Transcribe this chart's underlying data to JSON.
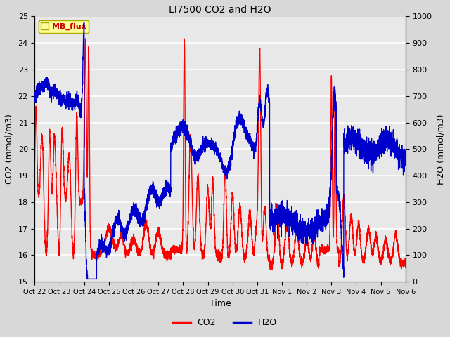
{
  "title": "LI7500 CO2 and H2O",
  "xlabel": "Time",
  "ylabel_left": "CO2 (mmol/m3)",
  "ylabel_right": "H2O (mmol/m3)",
  "ylim_left": [
    15.0,
    25.0
  ],
  "ylim_right": [
    0,
    1000
  ],
  "yticks_left": [
    15.0,
    16.0,
    17.0,
    18.0,
    19.0,
    20.0,
    21.0,
    22.0,
    23.0,
    24.0,
    25.0
  ],
  "yticks_right": [
    0,
    100,
    200,
    300,
    400,
    500,
    600,
    700,
    800,
    900,
    1000
  ],
  "xtick_labels": [
    "Oct 22",
    "Oct 23",
    "Oct 24",
    "Oct 25",
    "Oct 26",
    "Oct 27",
    "Oct 28",
    "Oct 29",
    "Oct 30",
    "Oct 31",
    "Nov 1",
    "Nov 2",
    "Nov 3",
    "Nov 4",
    "Nov 5",
    "Nov 6"
  ],
  "co2_color": "#FF0000",
  "h2o_color": "#0000CC",
  "bg_color": "#E8E8E8",
  "outer_bg": "#D8D8D8",
  "grid_color": "#FFFFFF",
  "legend_label": "MB_flux",
  "legend_box_color": "#FFFF99",
  "legend_box_edge": "#AAAA00",
  "line_width": 1.0,
  "title_fontsize": 10,
  "axis_fontsize": 9,
  "tick_fontsize": 8,
  "xtick_fontsize": 7
}
